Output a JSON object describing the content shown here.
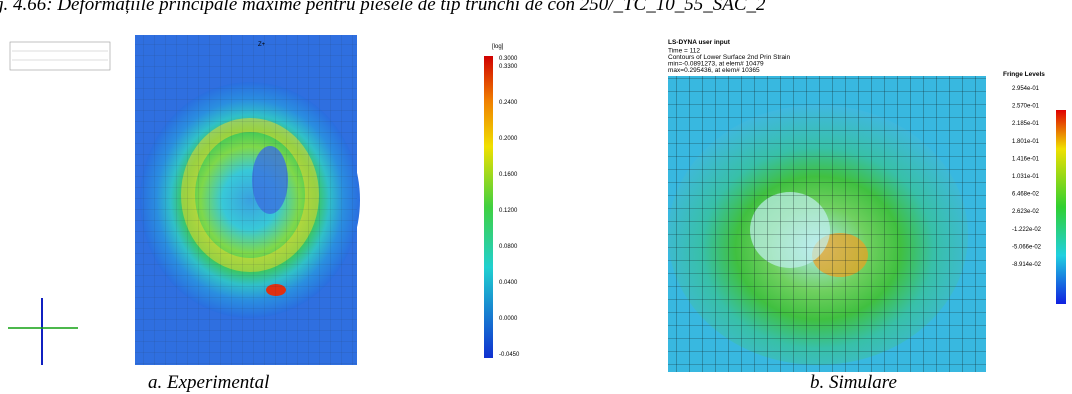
{
  "figure": {
    "caption": "g. 4.66: Deformațiile principale maxime pentru piesele de tip trunchi de con 250/_TC_10_55_SAC_2",
    "left": {
      "view_label": "Z+",
      "unit_label": "[log]",
      "scale_labels": [
        "0.3000",
        "0.3300",
        "0.2400",
        "0.2000",
        "0.1600",
        "0.1200",
        "0.0800",
        "0.0400",
        "0.0000",
        "-0.0450"
      ],
      "caption": "a. Experimental"
    },
    "right": {
      "header": [
        "LS-DYNA user input",
        "Time =      112",
        "Contours of Lower Surface 2nd Prin Strain",
        "min=-0.0891273, at elem# 10479",
        "max=0.295436, at elem# 10365"
      ],
      "legend_title": "Fringe Levels",
      "levels": [
        "2.954e-01",
        "2.570e-01",
        "2.185e-01",
        "1.801e-01",
        "1.416e-01",
        "1.031e-01",
        "6.468e-02",
        "2.623e-02",
        "-1.222e-02",
        "-5.066e-02",
        "-8.914e-02"
      ],
      "caption": "b. Simulare"
    }
  }
}
